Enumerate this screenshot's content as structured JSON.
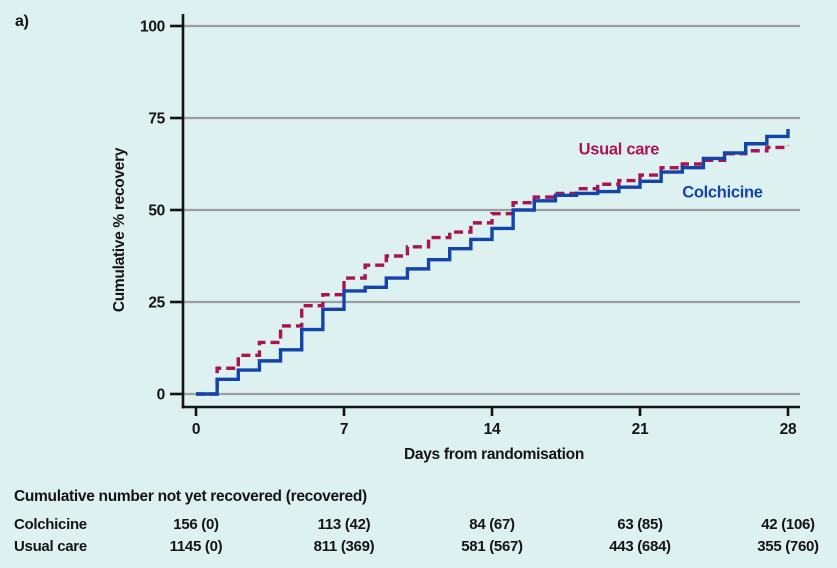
{
  "panel_label": "a)",
  "colors": {
    "background": "#ddf1f0",
    "colchicine_blue": "#1444aa",
    "usual_care_crimson": "#ab1450",
    "gridline_gray": "#9aa0a1",
    "axis_black": "#141414"
  },
  "chart_data": {
    "type": "line",
    "subtype": "step",
    "title": "",
    "xlabel": "Days from randomisation",
    "ylabel": "Cumulative % recovery",
    "xlim": [
      0,
      28
    ],
    "ylim": [
      0,
      100
    ],
    "x_ticks": [
      0,
      7,
      14,
      21,
      28
    ],
    "y_ticks": [
      0,
      25,
      50,
      75,
      100
    ],
    "grid": "horizontal",
    "x_days": [
      0,
      1,
      2,
      3,
      4,
      5,
      6,
      7,
      8,
      9,
      10,
      11,
      12,
      13,
      14,
      15,
      16,
      17,
      18,
      19,
      20,
      21,
      22,
      23,
      24,
      25,
      26,
      27,
      28
    ],
    "series": [
      {
        "name": "Usual care",
        "style": "dashed",
        "color": "#ab1450",
        "values": [
          0,
          7,
          10.5,
          14,
          18.5,
          24,
          27,
          31.5,
          35,
          37.5,
          40,
          42.5,
          44,
          46.5,
          49,
          52,
          53.5,
          54.5,
          55.8,
          57,
          58,
          59.5,
          61.5,
          62.5,
          63.5,
          65.3,
          66.1,
          67,
          67.5
        ]
      },
      {
        "name": "Colchicine",
        "style": "solid",
        "color": "#1444aa",
        "values": [
          0,
          4,
          6.5,
          9,
          12,
          17.5,
          23,
          28,
          29,
          31.5,
          34,
          36.5,
          39.5,
          42,
          45,
          50,
          52.5,
          54,
          54.5,
          55,
          56.2,
          57.8,
          60.3,
          61.5,
          64,
          65.5,
          68,
          70,
          72
        ]
      }
    ],
    "annotations": [
      {
        "text": "Usual care",
        "x": 20,
        "y": 66.5,
        "color": "#ab1450"
      },
      {
        "text": "Colchicine",
        "x": 24.9,
        "y": 54.8,
        "color": "#1444aa"
      }
    ],
    "legend_position": "inline-labels"
  },
  "risk_table": {
    "title": "Cumulative number not yet recovered (recovered)",
    "columns_days": [
      0,
      7,
      14,
      21,
      28
    ],
    "rows": [
      {
        "label": "Colchicine",
        "values": [
          "156 (0)",
          "113 (42)",
          "84 (67)",
          "63 (85)",
          "42 (106)"
        ]
      },
      {
        "label": "Usual care",
        "values": [
          "1145 (0)",
          "811 (369)",
          "581 (567)",
          "443 (684)",
          "355 (760)"
        ]
      }
    ]
  }
}
